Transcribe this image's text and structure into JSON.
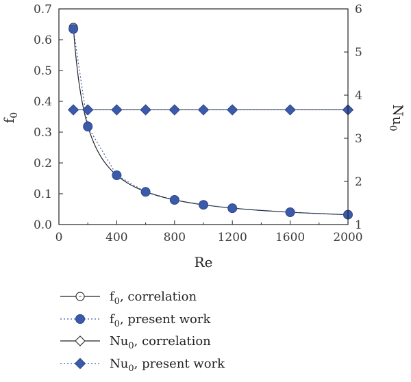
{
  "chart_data": {
    "type": "line",
    "xlabel": "Re",
    "xlim": [
      0,
      2000
    ],
    "xticks": [
      0,
      400,
      800,
      1200,
      1600,
      2000
    ],
    "y_left": {
      "label": "f",
      "label_sub": "0",
      "lim": [
        0.0,
        0.7
      ],
      "ticks": [
        "0.0",
        "0.1",
        "0.2",
        "0.3",
        "0.4",
        "0.5",
        "0.6",
        "0.7"
      ]
    },
    "y_right": {
      "label": "Nu",
      "label_sub": "0",
      "lim": [
        1,
        6
      ],
      "ticks": [
        "1",
        "2",
        "3",
        "4",
        "5",
        "6"
      ]
    },
    "series": [
      {
        "name": "f",
        "name_sub": "0",
        "name_rest": ", correlation",
        "axis": "left",
        "line": "solid",
        "marker": "open-circle",
        "x": [
          100,
          200,
          400,
          600,
          800,
          1000,
          1200,
          1600,
          2000
        ],
        "y": [
          0.64,
          0.32,
          0.16,
          0.1067,
          0.08,
          0.064,
          0.0533,
          0.04,
          0.032
        ]
      },
      {
        "name": "f",
        "name_sub": "0",
        "name_rest": ", present work",
        "axis": "left",
        "line": "dotted",
        "marker": "filled-circle",
        "x": [
          100,
          200,
          400,
          600,
          800,
          1000,
          1200,
          1600,
          2000
        ],
        "y": [
          0.635,
          0.318,
          0.16,
          0.106,
          0.08,
          0.064,
          0.053,
          0.04,
          0.032
        ]
      },
      {
        "name": "Nu",
        "name_sub": "0",
        "name_rest": ", correlation",
        "axis": "right",
        "line": "solid",
        "marker": "open-diamond",
        "x": [
          100,
          200,
          400,
          600,
          800,
          1000,
          1200,
          1600,
          2000
        ],
        "y": [
          3.66,
          3.66,
          3.66,
          3.66,
          3.66,
          3.66,
          3.66,
          3.66,
          3.66
        ]
      },
      {
        "name": "Nu",
        "name_sub": "0",
        "name_rest": ", present work",
        "axis": "right",
        "line": "dotted",
        "marker": "filled-diamond",
        "x": [
          100,
          200,
          400,
          600,
          800,
          1000,
          1200,
          1600,
          2000
        ],
        "y": [
          3.66,
          3.66,
          3.66,
          3.66,
          3.66,
          3.66,
          3.66,
          3.66,
          3.66
        ]
      }
    ],
    "colors": {
      "marker_fill": "#3b5aa8",
      "marker_stroke": "#2c4690",
      "line": "#222222",
      "dotted_line": "#3b5aa8",
      "axis": "#222222"
    },
    "legend_position": "bottom"
  }
}
